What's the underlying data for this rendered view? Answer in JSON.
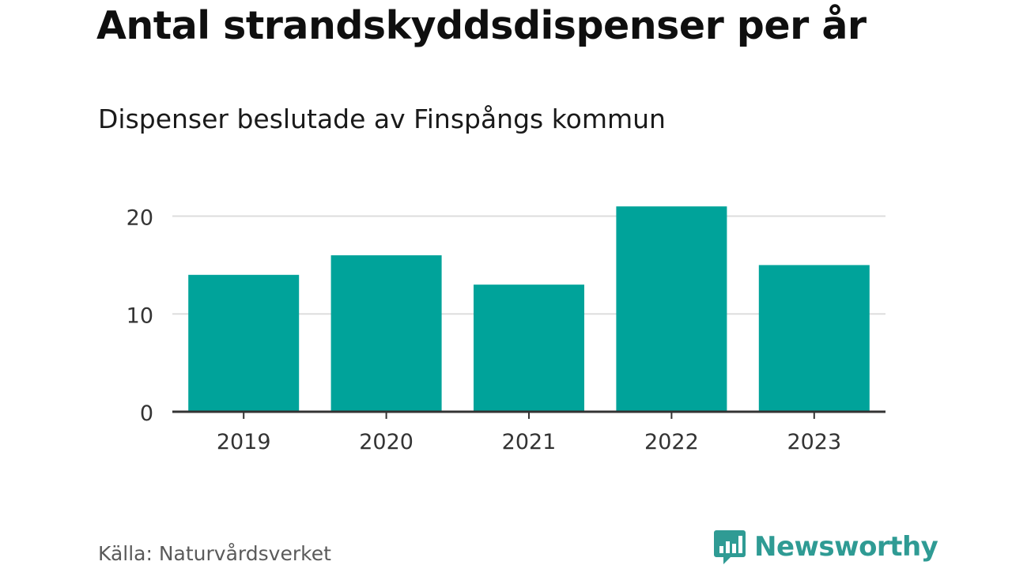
{
  "colors": {
    "bar": "#00a39a",
    "grid": "#dddddd",
    "axis": "#333333",
    "tick_text": "#333333",
    "brand": "#2f9b94"
  },
  "footer": {
    "source": "Källa: Naturvårdsverket",
    "brand_name": "Newsworthy",
    "brand_icon": "bar-chart-speech-bubble-icon"
  },
  "chart_data": {
    "type": "bar",
    "title": "Antal strandskyddsdispenser per år",
    "subtitle": "Dispenser beslutade av Finspångs kommun",
    "xlabel": "",
    "ylabel": "",
    "categories": [
      "2019",
      "2020",
      "2021",
      "2022",
      "2023"
    ],
    "values": [
      14,
      16,
      13,
      21,
      15
    ],
    "ylim": [
      0,
      21.5
    ],
    "yticks": [
      0,
      10,
      20
    ],
    "grid": true,
    "legend": "none"
  }
}
